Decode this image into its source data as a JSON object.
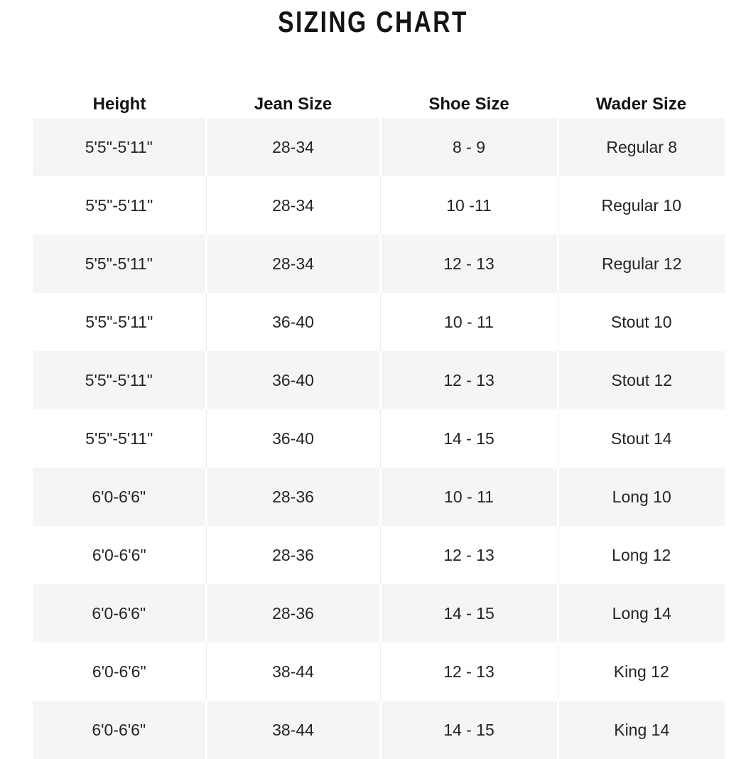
{
  "title": "SIZING CHART",
  "chart_data": {
    "type": "table",
    "title": "SIZING CHART",
    "columns": [
      "Height",
      "Jean Size",
      "Shoe Size",
      "Wader Size"
    ],
    "rows": [
      [
        "5'5\"-5'11\"",
        "28-34",
        "8 - 9",
        "Regular 8"
      ],
      [
        "5'5\"-5'11\"",
        "28-34",
        "10 -11",
        "Regular 10"
      ],
      [
        "5'5\"-5'11\"",
        "28-34",
        "12 - 13",
        "Regular 12"
      ],
      [
        "5'5\"-5'11\"",
        "36-40",
        "10 - 11",
        "Stout 10"
      ],
      [
        "5'5\"-5'11\"",
        "36-40",
        "12 - 13",
        "Stout 12"
      ],
      [
        "5'5\"-5'11\"",
        "36-40",
        "14 - 15",
        "Stout 14"
      ],
      [
        "6'0-6'6\"",
        "28-36",
        "10 - 11",
        "Long 10"
      ],
      [
        "6'0-6'6\"",
        "28-36",
        "12 - 13",
        "Long 12"
      ],
      [
        "6'0-6'6\"",
        "28-36",
        "14 - 15",
        "Long 14"
      ],
      [
        "6'0-6'6\"",
        "38-44",
        "12 - 13",
        "King 12"
      ],
      [
        "6'0-6'6\"",
        "38-44",
        "14 - 15",
        "King 14"
      ]
    ],
    "layout": {
      "row_striping": "odd rows shaded, even rows white",
      "text_align": "center",
      "last_row_clipped_by_viewport": true
    }
  },
  "colors": {
    "stripe": "#f5f5f5",
    "sep-on-gray": "#ffffff",
    "sep-on-white": "#ececec",
    "cell-text": "#242424",
    "header-text": "#141414",
    "bg": "#ffffff"
  }
}
